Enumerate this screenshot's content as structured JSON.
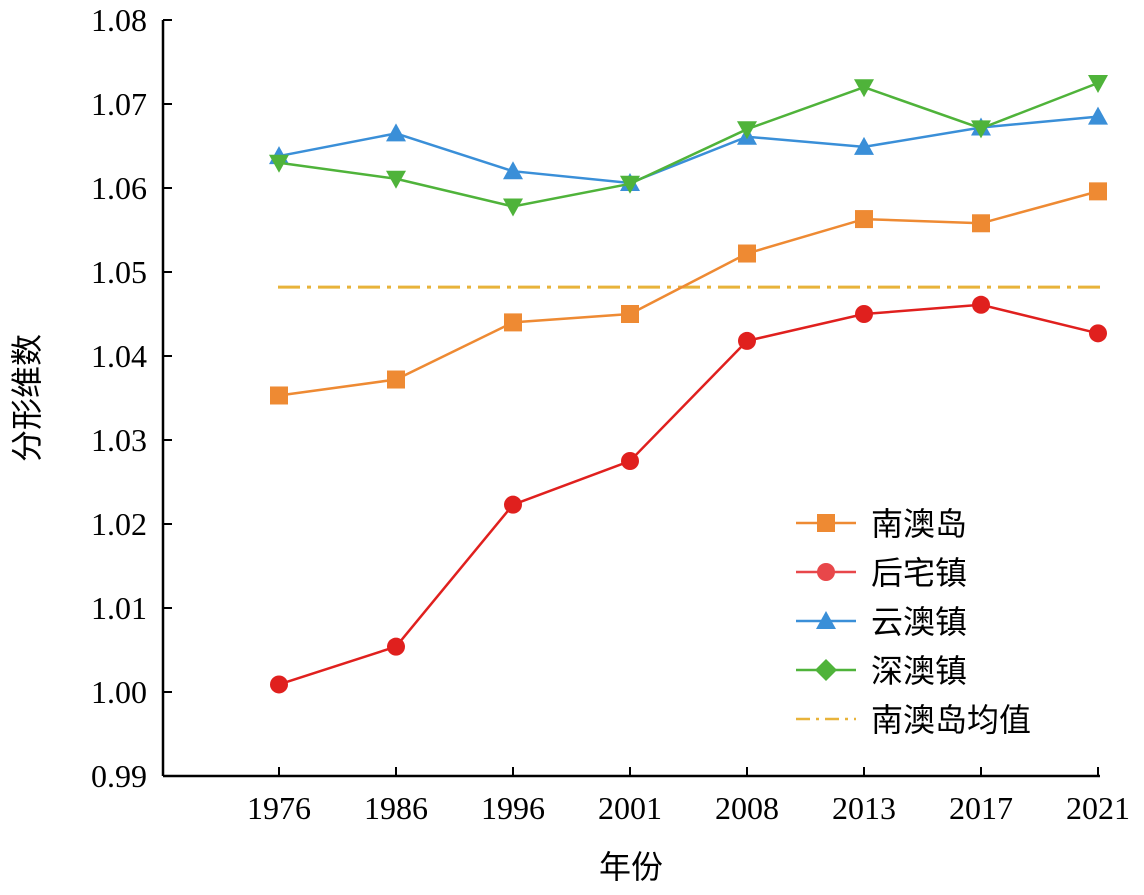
{
  "chart_data": {
    "type": "line",
    "xlabel": "年份",
    "ylabel": "分形维数",
    "categories": [
      "1976",
      "1986",
      "1996",
      "2001",
      "2008",
      "2013",
      "2017",
      "2021"
    ],
    "ylim": [
      0.99,
      1.08
    ],
    "yticks": [
      "0.99",
      "1.00",
      "1.01",
      "1.02",
      "1.03",
      "1.04",
      "1.05",
      "1.06",
      "1.07",
      "1.08"
    ],
    "legend_position": "lower-right",
    "grid": false,
    "series": [
      {
        "name": "南澳岛",
        "color": "#ee8a33",
        "marker": "square",
        "values": [
          1.0353,
          1.0372,
          1.044,
          1.045,
          1.0522,
          1.0563,
          1.0558,
          1.0596
        ]
      },
      {
        "name": "后宅镇",
        "color": "#e0201e",
        "marker": "circle",
        "legend_color": "#e8474a",
        "values": [
          1.0009,
          1.0054,
          1.0223,
          1.0275,
          1.0418,
          1.045,
          1.0461,
          1.0427
        ]
      },
      {
        "name": "云澳镇",
        "color": "#3a8fd8",
        "marker": "triangle-up",
        "values": [
          1.0638,
          1.0665,
          1.062,
          1.0606,
          1.0661,
          1.0649,
          1.0672,
          1.0685
        ]
      },
      {
        "name": "深澳镇",
        "color": "#4fb33a",
        "marker": "triangle-down",
        "legend_marker": "diamond",
        "values": [
          1.063,
          1.0611,
          1.0578,
          1.0605,
          1.067,
          1.072,
          1.0671,
          1.0725
        ]
      }
    ],
    "reference_line": {
      "name": "南澳岛均值",
      "value": 1.0482,
      "color": "#e8b33a",
      "style": "dash-dot"
    }
  }
}
